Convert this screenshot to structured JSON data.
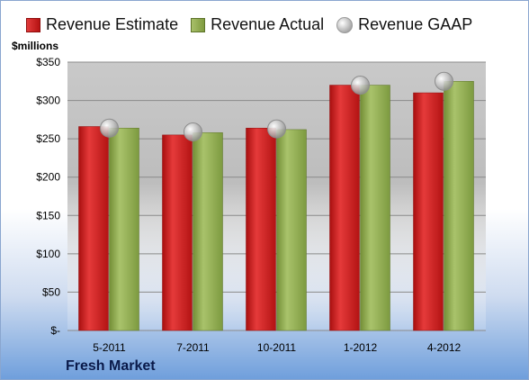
{
  "chart_data": {
    "type": "bar",
    "categories": [
      "5-2011",
      "7-2011",
      "10-2011",
      "1-2012",
      "4-2012"
    ],
    "series": [
      {
        "name": "Revenue Estimate",
        "type": "bar",
        "values": [
          266,
          255,
          264,
          320,
          310
        ]
      },
      {
        "name": "Revenue Actual",
        "type": "bar",
        "values": [
          264,
          258,
          262,
          320,
          325
        ]
      },
      {
        "name": "Revenue GAAP",
        "type": "scatter",
        "values": [
          264,
          259,
          263,
          320,
          325
        ]
      }
    ],
    "ylabel": "$millions",
    "ylim": [
      0,
      350
    ],
    "yticks": [
      0,
      50,
      100,
      150,
      200,
      250,
      300,
      350
    ],
    "ytick_labels": [
      "$-",
      "$50",
      "$100",
      "$150",
      "$200",
      "$250",
      "$300",
      "$350"
    ],
    "grid": true,
    "legend_position": "top",
    "colors": {
      "estimate": "#c41a1a",
      "actual": "#8fac4c",
      "gaap": "#c8c8c8"
    },
    "annotation": "Fresh Market"
  }
}
